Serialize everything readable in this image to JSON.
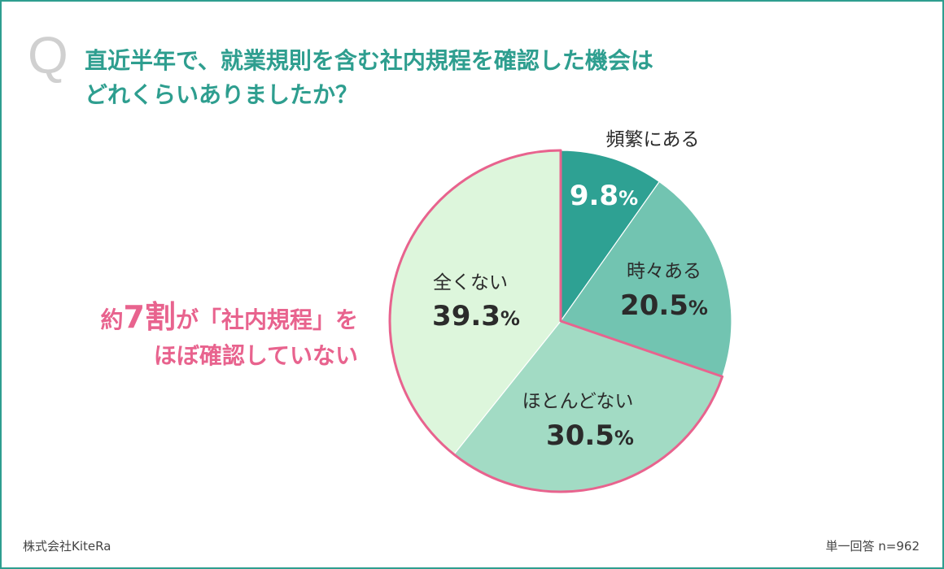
{
  "question": {
    "q_mark": "Q",
    "line1": "直近半年で、就業規則を含む社内規程を確認した機会は",
    "line2": "どれくらいありましたか？"
  },
  "callout": {
    "prefix": "約",
    "highlight": "7割",
    "rest1": "が「社内規程」を",
    "line2": "ほぼ確認していない"
  },
  "chart_data": {
    "type": "pie",
    "start_angle_deg": 0,
    "direction": "clockwise",
    "percent_symbol": "%",
    "slices": [
      {
        "label": "頻繁にある",
        "value": 9.8,
        "display": "9.8",
        "color": "#2ea193",
        "label_position": "outside"
      },
      {
        "label": "時々ある",
        "value": 20.5,
        "display": "20.5",
        "color": "#72c4b1",
        "label_position": "inside"
      },
      {
        "label": "ほとんどない",
        "value": 30.5,
        "display": "30.5",
        "color": "#a2dbc4",
        "label_position": "inside"
      },
      {
        "label": "全くない",
        "value": 39.3,
        "display": "39.3",
        "color": "#ddf6dc",
        "label_position": "inside"
      }
    ],
    "highlight_border_color": "#e8638e",
    "highlighted_slices": [
      "ほとんどない",
      "全くない"
    ]
  },
  "footer": {
    "left": "株式会社KiteRa",
    "right": "単一回答 n=962"
  },
  "colors": {
    "frame": "#2e9e8f",
    "question_text": "#2e9e8f",
    "callout_text": "#e8638e",
    "label_dark": "#2b2b2b",
    "label_light": "#ffffff"
  }
}
